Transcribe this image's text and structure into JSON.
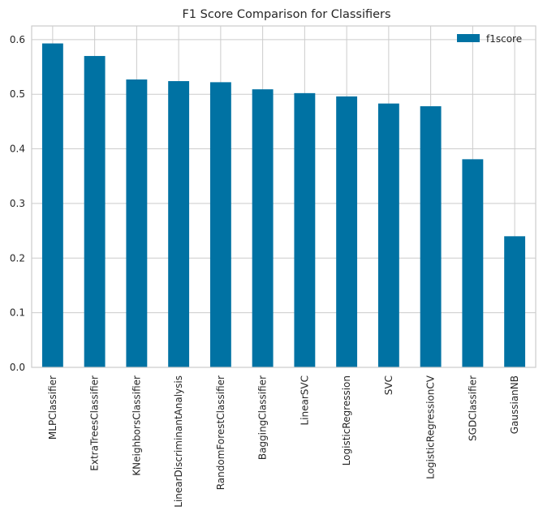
{
  "chart_data": {
    "type": "bar",
    "title": "F1 Score Comparison for Classifiers",
    "xlabel": "",
    "ylabel": "",
    "categories": [
      "MLPClassifier",
      "ExtraTreesClassifier",
      "KNeighborsClassifier",
      "LinearDiscriminantAnalysis",
      "RandomForestClassifier",
      "BaggingClassifier",
      "LinearSVC",
      "LogisticRegression",
      "SVC",
      "LogisticRegressionCV",
      "SGDClassifier",
      "GaussianNB"
    ],
    "series": [
      {
        "name": "f1score",
        "values": [
          0.593,
          0.57,
          0.527,
          0.524,
          0.522,
          0.509,
          0.502,
          0.496,
          0.483,
          0.478,
          0.381,
          0.24
        ],
        "color": "#0072a3"
      }
    ],
    "ylim": [
      0,
      0.625
    ],
    "yticks": [
      0.0,
      0.1,
      0.2,
      0.3,
      0.4,
      0.5,
      0.6
    ],
    "ytick_labels": [
      "0.0",
      "0.1",
      "0.2",
      "0.3",
      "0.4",
      "0.5",
      "0.6"
    ],
    "grid": true,
    "legend_position": "top-right",
    "colors": {
      "bar": "#0072a3",
      "grid": "#cccccc",
      "axes": "#cccccc",
      "text": "#262626"
    }
  }
}
